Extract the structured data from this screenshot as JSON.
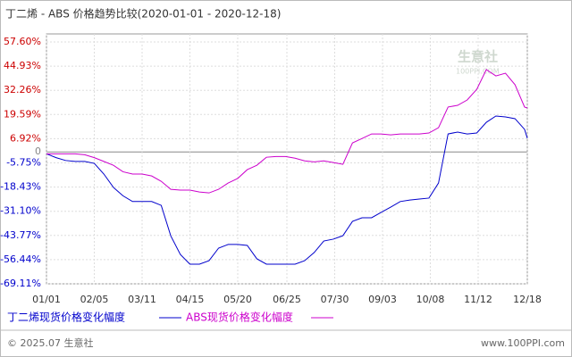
{
  "chart_data": {
    "type": "line",
    "title": "丁二烯 - ABS 价格趋势比较(2020-01-01 - 2020-12-18)",
    "x": [
      0,
      7,
      14,
      21,
      28,
      35,
      42,
      49,
      56,
      63,
      70,
      77,
      84,
      91,
      98,
      105,
      112,
      119,
      126,
      133,
      140,
      147,
      154,
      161,
      168,
      175,
      182,
      189,
      196,
      203,
      210,
      217,
      224,
      231,
      238,
      245,
      252,
      259,
      266,
      273,
      280,
      287,
      294,
      301,
      308,
      315,
      322,
      329,
      336,
      343,
      350,
      352
    ],
    "xlim": [
      0,
      352
    ],
    "xticks": [
      {
        "value": 0,
        "label": "01/01"
      },
      {
        "value": 35,
        "label": "02/05"
      },
      {
        "value": 70,
        "label": "03/11"
      },
      {
        "value": 105,
        "label": "04/15"
      },
      {
        "value": 140,
        "label": "05/20"
      },
      {
        "value": 176,
        "label": "06/25"
      },
      {
        "value": 211,
        "label": "07/30"
      },
      {
        "value": 246,
        "label": "09/03"
      },
      {
        "value": 281,
        "label": "10/08"
      },
      {
        "value": 316,
        "label": "11/12"
      },
      {
        "value": 352,
        "label": "12/18"
      }
    ],
    "ylim": [
      -69.11,
      57.6
    ],
    "yticks": [
      {
        "value": 57.6,
        "label": "57.60%"
      },
      {
        "value": 44.93,
        "label": "44.93%"
      },
      {
        "value": 32.26,
        "label": "32.26%"
      },
      {
        "value": 19.59,
        "label": "19.59%"
      },
      {
        "value": 6.92,
        "label": "6.92%"
      },
      0,
      {
        "value": -5.75,
        "label": "-5.75%"
      },
      {
        "value": -18.43,
        "label": "-18.43%"
      },
      {
        "value": -31.1,
        "label": "-31.10%"
      },
      {
        "value": -43.77,
        "label": "-43.77%"
      },
      {
        "value": -56.44,
        "label": "-56.44%"
      },
      {
        "value": -69.11,
        "label": "-69.11%"
      }
    ],
    "grid": true,
    "series": [
      {
        "name": "丁二烯现货价格变化幅度",
        "color": "#0000cc",
        "values": [
          -1,
          -3,
          -4.5,
          -5,
          -5,
          -6,
          -11.6,
          -18.6,
          -23,
          -26,
          -26,
          -26,
          -28,
          -44,
          -53.7,
          -58.8,
          -58.8,
          -57,
          -50.4,
          -48.5,
          -48.5,
          -49,
          -56,
          -58.8,
          -58.8,
          -58.8,
          -58.8,
          -57,
          -52.7,
          -46.7,
          -45.7,
          -43.9,
          -36.4,
          -34.5,
          -34.5,
          -31.7,
          -28.9,
          -26,
          -25.2,
          -24.7,
          -24.2,
          -16.3,
          9.4,
          10.4,
          9.4,
          9.9,
          15.5,
          18.8,
          18.3,
          17.4,
          11.8,
          7.2
        ]
      },
      {
        "name": "ABS现货价格变化幅度",
        "color": "#cc00cc",
        "values": [
          -1,
          -1,
          -1,
          -1,
          -1.5,
          -3,
          -5,
          -7,
          -10.4,
          -11.6,
          -11.6,
          -12.6,
          -15.4,
          -19.6,
          -20,
          -20,
          -21,
          -21.5,
          -19.6,
          -16.3,
          -13.9,
          -9.3,
          -7,
          -2.8,
          -2.4,
          -2.4,
          -3.3,
          -4.7,
          -5.2,
          -4.7,
          -5.6,
          -6.5,
          4.7,
          7,
          9.4,
          9.4,
          8.9,
          9.4,
          9.4,
          9.4,
          9.9,
          12.7,
          23.5,
          24.4,
          27.2,
          32.8,
          43.1,
          39.8,
          41.2,
          35.2,
          23.5,
          23
        ]
      }
    ]
  },
  "watermark": {
    "name": "生意社",
    "site": "100PPI.COM"
  },
  "footer": {
    "left": "© 2025.07 生意社",
    "right": "www.100PPI.com"
  }
}
